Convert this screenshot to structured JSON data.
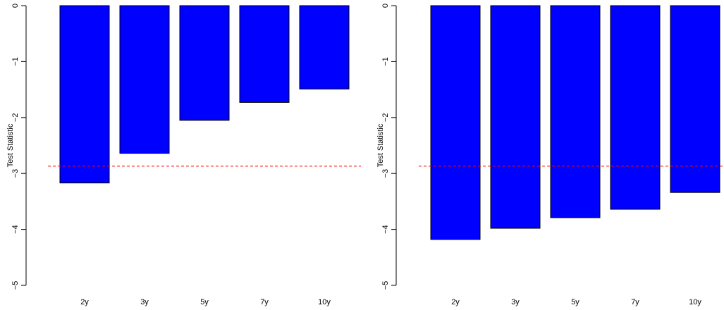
{
  "chart_data": [
    {
      "type": "bar",
      "categories": [
        "2y",
        "3y",
        "5y",
        "7y",
        "10y"
      ],
      "values": [
        -3.17,
        -2.64,
        -2.05,
        -1.73,
        -1.49
      ],
      "ylabel": "Test Statistic",
      "ylim": [
        -5,
        0
      ],
      "yticks": [
        0,
        -1,
        -2,
        -3,
        -4,
        -5
      ],
      "ytick_labels": [
        "0",
        "−1",
        "−2",
        "−3",
        "−4",
        "−5"
      ],
      "reference_line": -2.87,
      "bar_color": "#0000ff",
      "reference_line_color": "#ff0000",
      "grid": false,
      "legend": "none"
    },
    {
      "type": "bar",
      "categories": [
        "2y",
        "3y",
        "5y",
        "7y",
        "10y"
      ],
      "values": [
        -4.18,
        -3.98,
        -3.79,
        -3.64,
        -3.34
      ],
      "ylabel": "Test Statistic",
      "ylim": [
        -5,
        0
      ],
      "yticks": [
        0,
        -1,
        -2,
        -3,
        -4,
        -5
      ],
      "ytick_labels": [
        "0",
        "−1",
        "−2",
        "−3",
        "−4",
        "−5"
      ],
      "reference_line": -2.87,
      "bar_color": "#0000ff",
      "reference_line_color": "#ff0000",
      "grid": false,
      "legend": "none"
    }
  ]
}
